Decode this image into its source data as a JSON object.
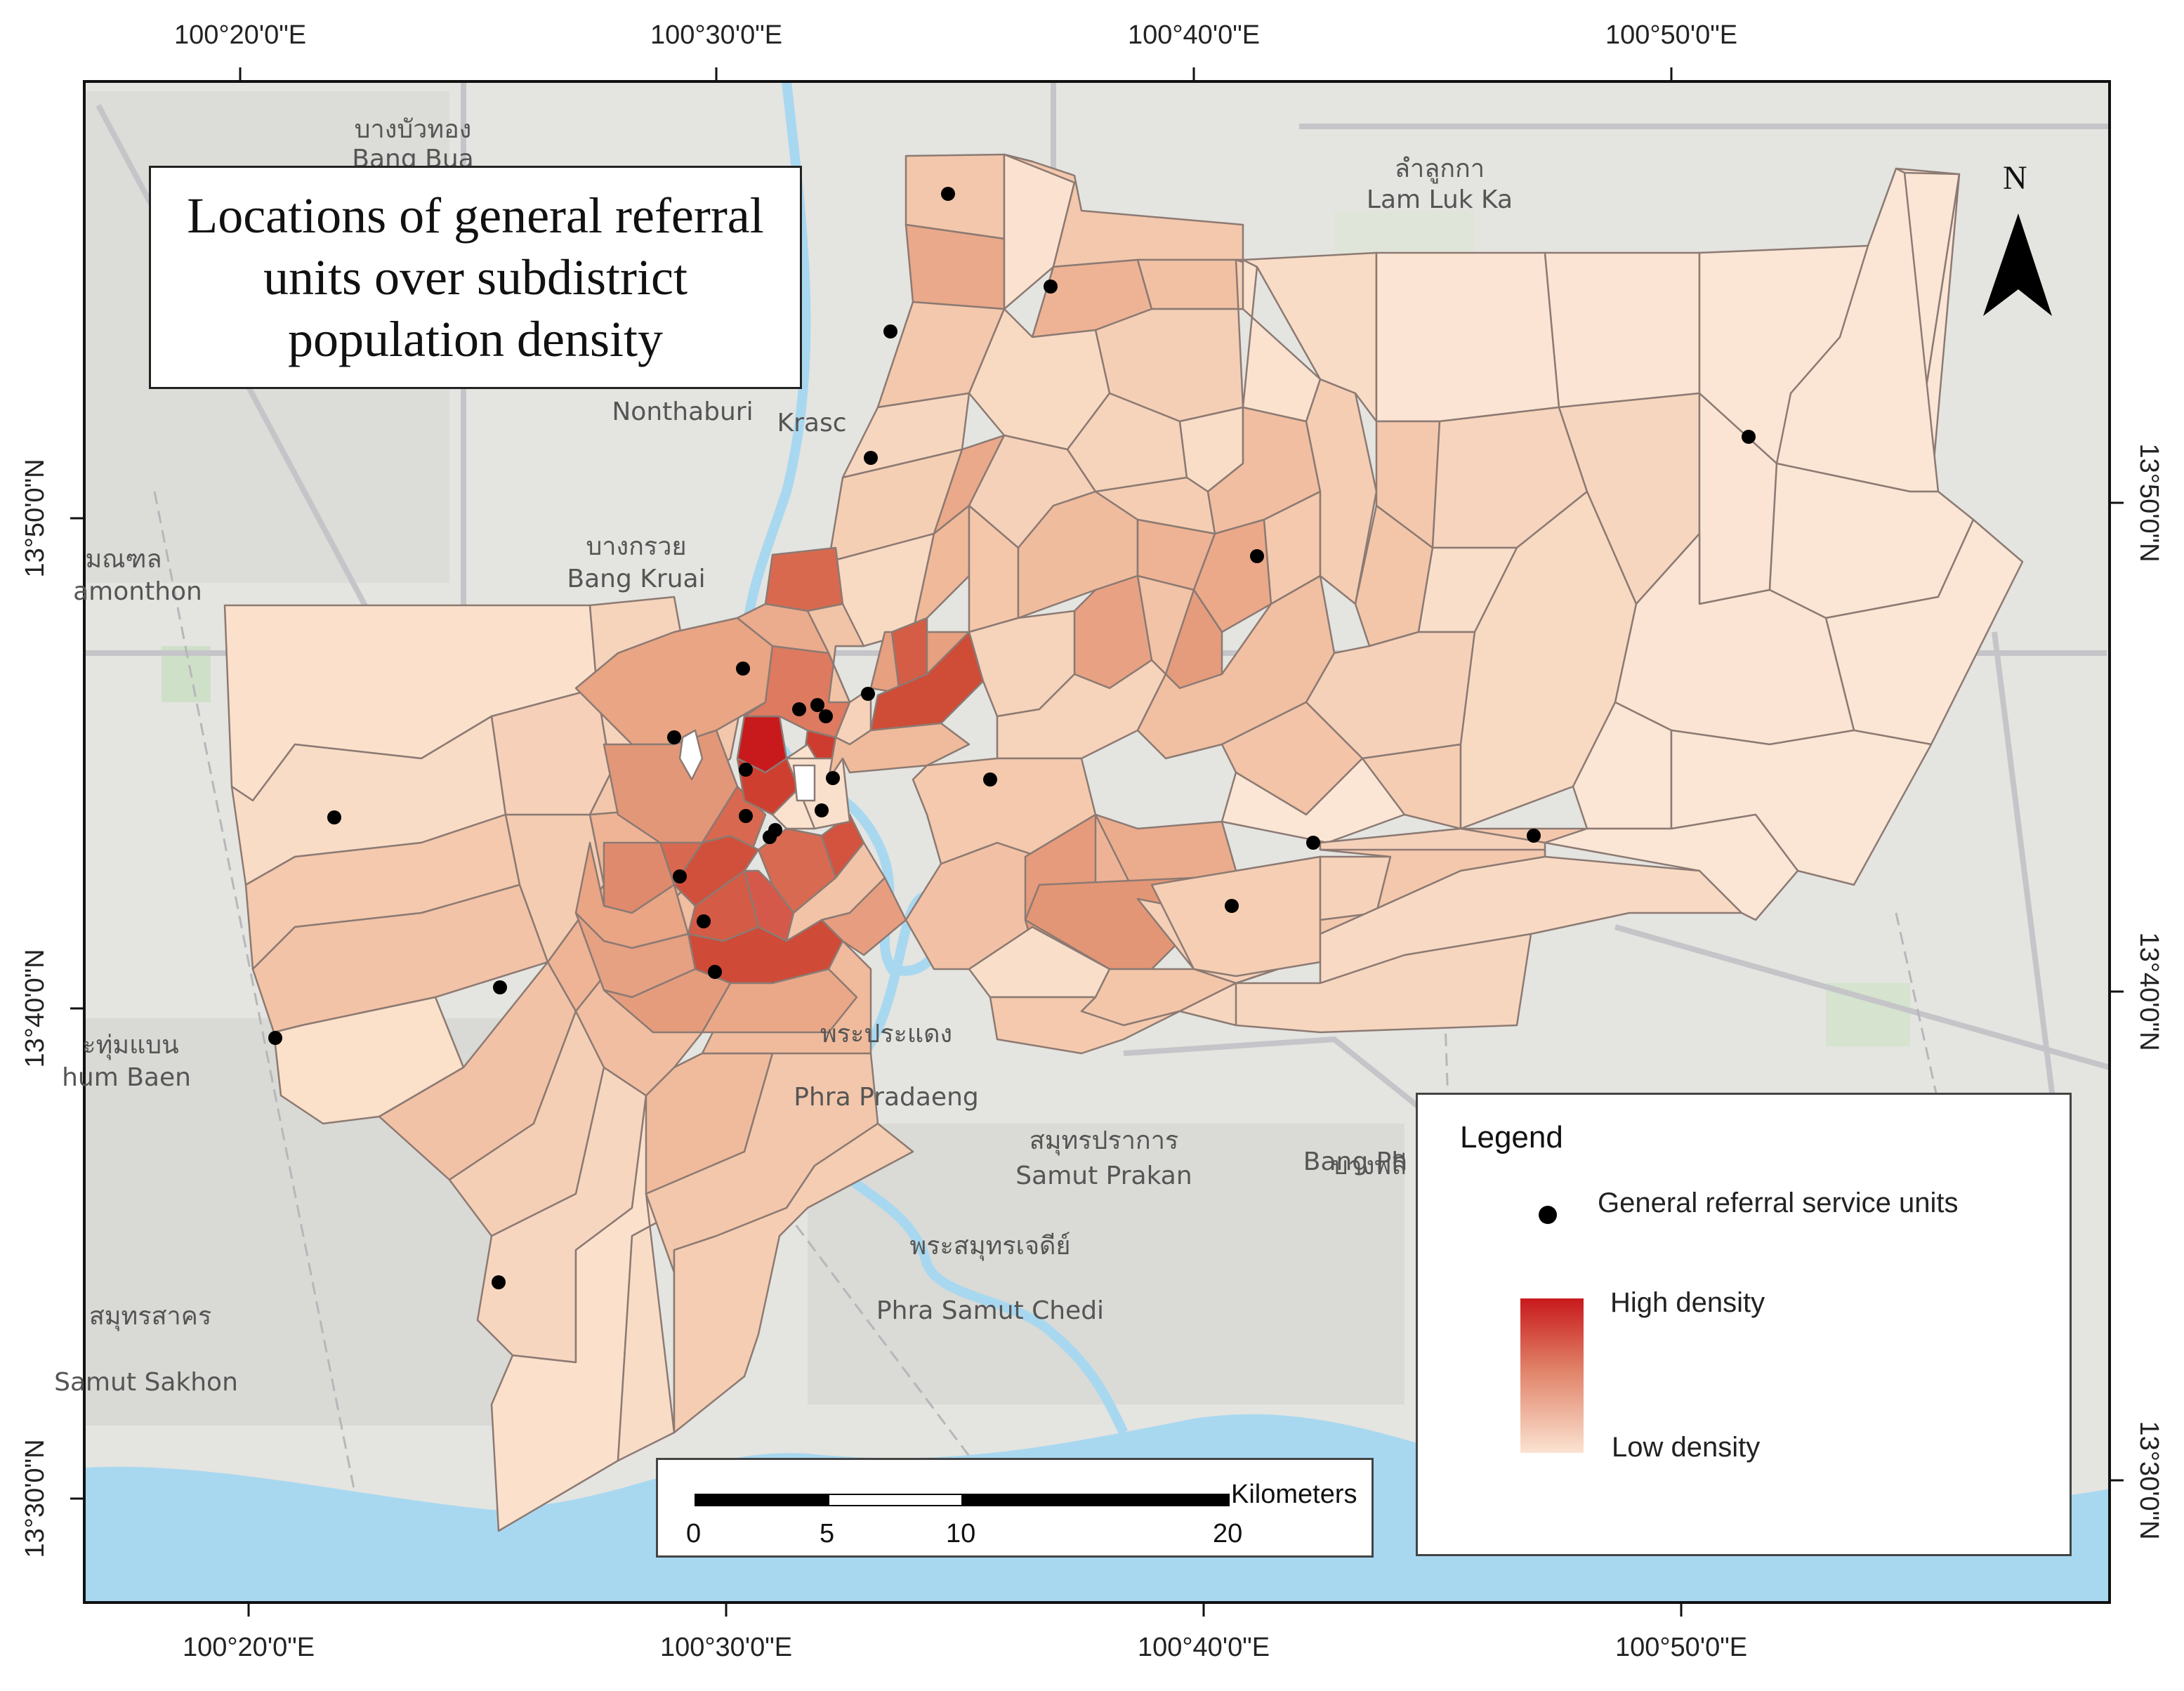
{
  "map": {
    "title": "Locations of general referral\nunits over subdistrict\npopulation density",
    "top_longitudes": [
      "100°20'0\"E",
      "100°30'0\"E",
      "100°40'0\"E",
      "100°50'0\"E"
    ],
    "bottom_longitudes": [
      "100°20'0\"E",
      "100°30'0\"E",
      "100°40'0\"E",
      "100°50'0\"E"
    ],
    "left_latitudes": [
      "13°50'0\"N",
      "13°40'0\"N",
      "13°30'0\"N"
    ],
    "right_latitudes": [
      "13°50'0\"N",
      "13°40'0\"N",
      "13°30'0\"N"
    ],
    "places": [
      {
        "thai": "บางบัวทอง",
        "latin": "Bang Bua"
      },
      {
        "thai": "ลำลูกกา",
        "latin": "Lam Luk Ka"
      },
      {
        "thai": "",
        "latin": "Nonthaburi"
      },
      {
        "thai": "บางกรวย",
        "latin": "Bang Kruai"
      },
      {
        "thai": "มณฑล",
        "latin": "amonthon"
      },
      {
        "thai": "ะทุ่มแบน",
        "latin": "hum Baen"
      },
      {
        "thai": "พระประแดง",
        "latin": "Phra Pradaeng"
      },
      {
        "thai": "สมุทรปราการ",
        "latin": "Samut Prakan"
      },
      {
        "thai": "พระสมุทรเจดีย์",
        "latin": "Phra Samut Chedi"
      },
      {
        "thai": "สมุทรสาคร",
        "latin": "Samut Sakhon"
      },
      {
        "thai": "บางพลี",
        "latin": "Bang Ph"
      },
      {
        "thai": "",
        "latin": "Krasc"
      }
    ],
    "north_arrow": {
      "label": "N",
      "icon": "north-arrow-icon"
    },
    "colors": {
      "high_density": "#c8191c",
      "low_density": "#fbe3d1",
      "service_unit": "#000000",
      "water": "#a8d8f0",
      "basemap": "#e4e4e0"
    }
  },
  "legend": {
    "title": "Legend",
    "service_units_label": "General referral service units",
    "high_label": "High density",
    "low_label": "Low density"
  },
  "scalebar": {
    "unit": "Kilometers",
    "ticks": [
      "0",
      "5",
      "10",
      "20"
    ]
  }
}
